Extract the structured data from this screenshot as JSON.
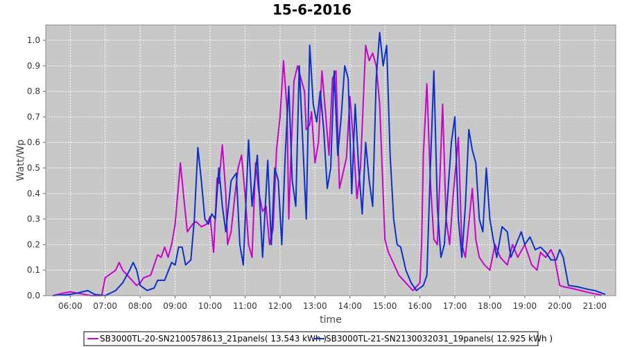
{
  "chart_data": {
    "type": "line",
    "title": "15-6-2016",
    "xlabel": "time",
    "ylabel": "Watt/Wp",
    "xlim": [
      5.3,
      21.6
    ],
    "ylim": [
      0,
      1.06
    ],
    "x_ticks": [
      {
        "value": 6,
        "label": "06:00"
      },
      {
        "value": 7,
        "label": "07:00"
      },
      {
        "value": 8,
        "label": "08:00"
      },
      {
        "value": 9,
        "label": "09:00"
      },
      {
        "value": 10,
        "label": "10:00"
      },
      {
        "value": 11,
        "label": "11:00"
      },
      {
        "value": 12,
        "label": "12:00"
      },
      {
        "value": 13,
        "label": "13:00"
      },
      {
        "value": 14,
        "label": "14:00"
      },
      {
        "value": 15,
        "label": "15:00"
      },
      {
        "value": 16,
        "label": "16:00"
      },
      {
        "value": 17,
        "label": "17:00"
      },
      {
        "value": 18,
        "label": "18:00"
      },
      {
        "value": 19,
        "label": "19:00"
      },
      {
        "value": 20,
        "label": "20:00"
      },
      {
        "value": 21,
        "label": "21:00"
      }
    ],
    "y_ticks": [
      {
        "value": 0.0,
        "label": "0.0"
      },
      {
        "value": 0.1,
        "label": "0.1"
      },
      {
        "value": 0.2,
        "label": "0.2"
      },
      {
        "value": 0.3,
        "label": "0.3"
      },
      {
        "value": 0.4,
        "label": "0.4"
      },
      {
        "value": 0.5,
        "label": "0.5"
      },
      {
        "value": 0.6,
        "label": "0.6"
      },
      {
        "value": 0.7,
        "label": "0.7"
      },
      {
        "value": 0.8,
        "label": "0.8"
      },
      {
        "value": 0.9,
        "label": "0.9"
      },
      {
        "value": 1.0,
        "label": "1.0"
      }
    ],
    "grid": true,
    "legend_position": "bottom",
    "colors": {
      "plot_background": "#c8c8c8",
      "grid": "#ffffff"
    },
    "series": [
      {
        "name": "SB3000TL-20-SN2100578613_21panels( 13.543 kWh )",
        "color": "#cc00cc",
        "points": [
          [
            5.5,
            0.0
          ],
          [
            5.8,
            0.01
          ],
          [
            6.0,
            0.015
          ],
          [
            6.2,
            0.01
          ],
          [
            6.4,
            0.005
          ],
          [
            6.6,
            0.0
          ],
          [
            6.9,
            0.0
          ],
          [
            7.0,
            0.07
          ],
          [
            7.2,
            0.09
          ],
          [
            7.3,
            0.1
          ],
          [
            7.4,
            0.13
          ],
          [
            7.5,
            0.1
          ],
          [
            7.7,
            0.07
          ],
          [
            7.9,
            0.04
          ],
          [
            8.0,
            0.05
          ],
          [
            8.1,
            0.07
          ],
          [
            8.3,
            0.08
          ],
          [
            8.5,
            0.16
          ],
          [
            8.6,
            0.15
          ],
          [
            8.7,
            0.19
          ],
          [
            8.8,
            0.15
          ],
          [
            8.9,
            0.2
          ],
          [
            9.0,
            0.28
          ],
          [
            9.15,
            0.52
          ],
          [
            9.25,
            0.38
          ],
          [
            9.35,
            0.25
          ],
          [
            9.5,
            0.28
          ],
          [
            9.6,
            0.29
          ],
          [
            9.75,
            0.27
          ],
          [
            9.9,
            0.28
          ],
          [
            10.0,
            0.31
          ],
          [
            10.1,
            0.17
          ],
          [
            10.2,
            0.46
          ],
          [
            10.25,
            0.44
          ],
          [
            10.35,
            0.59
          ],
          [
            10.45,
            0.4
          ],
          [
            10.5,
            0.2
          ],
          [
            10.6,
            0.25
          ],
          [
            10.7,
            0.38
          ],
          [
            10.8,
            0.5
          ],
          [
            10.9,
            0.55
          ],
          [
            11.0,
            0.4
          ],
          [
            11.1,
            0.2
          ],
          [
            11.2,
            0.15
          ],
          [
            11.3,
            0.52
          ],
          [
            11.4,
            0.4
          ],
          [
            11.5,
            0.33
          ],
          [
            11.6,
            0.35
          ],
          [
            11.7,
            0.2
          ],
          [
            11.8,
            0.26
          ],
          [
            11.9,
            0.57
          ],
          [
            12.0,
            0.7
          ],
          [
            12.1,
            0.92
          ],
          [
            12.2,
            0.73
          ],
          [
            12.25,
            0.3
          ],
          [
            12.3,
            0.5
          ],
          [
            12.4,
            0.84
          ],
          [
            12.5,
            0.9
          ],
          [
            12.6,
            0.85
          ],
          [
            12.7,
            0.8
          ],
          [
            12.75,
            0.65
          ],
          [
            12.85,
            0.67
          ],
          [
            12.9,
            0.72
          ],
          [
            13.0,
            0.52
          ],
          [
            13.1,
            0.6
          ],
          [
            13.2,
            0.88
          ],
          [
            13.3,
            0.72
          ],
          [
            13.4,
            0.55
          ],
          [
            13.5,
            0.85
          ],
          [
            13.6,
            0.88
          ],
          [
            13.7,
            0.42
          ],
          [
            13.8,
            0.48
          ],
          [
            13.9,
            0.54
          ],
          [
            14.0,
            0.78
          ],
          [
            14.1,
            0.6
          ],
          [
            14.2,
            0.38
          ],
          [
            14.3,
            0.5
          ],
          [
            14.45,
            0.98
          ],
          [
            14.55,
            0.92
          ],
          [
            14.65,
            0.95
          ],
          [
            14.75,
            0.9
          ],
          [
            14.85,
            0.75
          ],
          [
            14.95,
            0.4
          ],
          [
            15.0,
            0.22
          ],
          [
            15.1,
            0.17
          ],
          [
            15.2,
            0.14
          ],
          [
            15.4,
            0.08
          ],
          [
            15.6,
            0.05
          ],
          [
            15.8,
            0.02
          ],
          [
            16.0,
            0.05
          ],
          [
            16.05,
            0.2
          ],
          [
            16.1,
            0.55
          ],
          [
            16.2,
            0.83
          ],
          [
            16.3,
            0.45
          ],
          [
            16.4,
            0.22
          ],
          [
            16.5,
            0.2
          ],
          [
            16.65,
            0.75
          ],
          [
            16.75,
            0.3
          ],
          [
            16.85,
            0.2
          ],
          [
            16.95,
            0.39
          ],
          [
            17.1,
            0.62
          ],
          [
            17.2,
            0.2
          ],
          [
            17.3,
            0.15
          ],
          [
            17.5,
            0.42
          ],
          [
            17.6,
            0.22
          ],
          [
            17.7,
            0.15
          ],
          [
            17.85,
            0.12
          ],
          [
            18.0,
            0.1
          ],
          [
            18.15,
            0.2
          ],
          [
            18.3,
            0.15
          ],
          [
            18.5,
            0.12
          ],
          [
            18.65,
            0.2
          ],
          [
            18.8,
            0.15
          ],
          [
            19.0,
            0.2
          ],
          [
            19.2,
            0.12
          ],
          [
            19.35,
            0.1
          ],
          [
            19.45,
            0.17
          ],
          [
            19.6,
            0.15
          ],
          [
            19.75,
            0.18
          ],
          [
            19.85,
            0.15
          ],
          [
            20.0,
            0.04
          ],
          [
            20.1,
            0.035
          ],
          [
            20.3,
            0.03
          ],
          [
            20.6,
            0.02
          ],
          [
            20.9,
            0.01
          ],
          [
            21.2,
            0.002
          ]
        ]
      },
      {
        "name": "SB3000TL-21-SN2130032031_19panels( 12.925 kWh )",
        "color": "#0a2fcc",
        "points": [
          [
            5.5,
            0.0
          ],
          [
            6.0,
            0.005
          ],
          [
            6.2,
            0.01
          ],
          [
            6.5,
            0.02
          ],
          [
            6.7,
            0.005
          ],
          [
            7.0,
            0.0
          ],
          [
            7.3,
            0.02
          ],
          [
            7.5,
            0.05
          ],
          [
            7.7,
            0.1
          ],
          [
            7.8,
            0.13
          ],
          [
            7.9,
            0.1
          ],
          [
            8.0,
            0.04
          ],
          [
            8.2,
            0.02
          ],
          [
            8.4,
            0.03
          ],
          [
            8.5,
            0.06
          ],
          [
            8.7,
            0.06
          ],
          [
            8.9,
            0.13
          ],
          [
            9.0,
            0.12
          ],
          [
            9.1,
            0.19
          ],
          [
            9.2,
            0.19
          ],
          [
            9.3,
            0.12
          ],
          [
            9.45,
            0.14
          ],
          [
            9.55,
            0.3
          ],
          [
            9.65,
            0.58
          ],
          [
            9.75,
            0.45
          ],
          [
            9.85,
            0.3
          ],
          [
            9.95,
            0.28
          ],
          [
            10.05,
            0.32
          ],
          [
            10.15,
            0.3
          ],
          [
            10.25,
            0.5
          ],
          [
            10.35,
            0.35
          ],
          [
            10.45,
            0.25
          ],
          [
            10.6,
            0.45
          ],
          [
            10.75,
            0.48
          ],
          [
            10.85,
            0.2
          ],
          [
            10.95,
            0.12
          ],
          [
            11.1,
            0.61
          ],
          [
            11.2,
            0.35
          ],
          [
            11.35,
            0.55
          ],
          [
            11.5,
            0.15
          ],
          [
            11.65,
            0.53
          ],
          [
            11.75,
            0.2
          ],
          [
            11.85,
            0.5
          ],
          [
            11.95,
            0.45
          ],
          [
            12.05,
            0.2
          ],
          [
            12.15,
            0.55
          ],
          [
            12.25,
            0.82
          ],
          [
            12.35,
            0.45
          ],
          [
            12.45,
            0.35
          ],
          [
            12.55,
            0.9
          ],
          [
            12.65,
            0.6
          ],
          [
            12.75,
            0.3
          ],
          [
            12.85,
            0.98
          ],
          [
            12.95,
            0.75
          ],
          [
            13.05,
            0.68
          ],
          [
            13.15,
            0.8
          ],
          [
            13.25,
            0.65
          ],
          [
            13.35,
            0.42
          ],
          [
            13.45,
            0.5
          ],
          [
            13.55,
            0.88
          ],
          [
            13.65,
            0.55
          ],
          [
            13.75,
            0.7
          ],
          [
            13.85,
            0.9
          ],
          [
            13.95,
            0.85
          ],
          [
            14.05,
            0.4
          ],
          [
            14.15,
            0.75
          ],
          [
            14.25,
            0.5
          ],
          [
            14.35,
            0.32
          ],
          [
            14.45,
            0.6
          ],
          [
            14.55,
            0.45
          ],
          [
            14.65,
            0.35
          ],
          [
            14.75,
            0.85
          ],
          [
            14.85,
            1.03
          ],
          [
            14.95,
            0.9
          ],
          [
            15.05,
            0.98
          ],
          [
            15.15,
            0.55
          ],
          [
            15.25,
            0.3
          ],
          [
            15.35,
            0.2
          ],
          [
            15.45,
            0.19
          ],
          [
            15.6,
            0.1
          ],
          [
            15.75,
            0.05
          ],
          [
            15.9,
            0.02
          ],
          [
            16.1,
            0.04
          ],
          [
            16.2,
            0.08
          ],
          [
            16.3,
            0.5
          ],
          [
            16.4,
            0.88
          ],
          [
            16.5,
            0.35
          ],
          [
            16.6,
            0.15
          ],
          [
            16.7,
            0.2
          ],
          [
            16.8,
            0.4
          ],
          [
            16.9,
            0.6
          ],
          [
            17.0,
            0.7
          ],
          [
            17.1,
            0.3
          ],
          [
            17.2,
            0.15
          ],
          [
            17.3,
            0.35
          ],
          [
            17.4,
            0.65
          ],
          [
            17.5,
            0.57
          ],
          [
            17.6,
            0.52
          ],
          [
            17.7,
            0.3
          ],
          [
            17.8,
            0.25
          ],
          [
            17.9,
            0.5
          ],
          [
            18.0,
            0.3
          ],
          [
            18.1,
            0.22
          ],
          [
            18.2,
            0.15
          ],
          [
            18.35,
            0.27
          ],
          [
            18.5,
            0.25
          ],
          [
            18.6,
            0.15
          ],
          [
            18.75,
            0.2
          ],
          [
            18.9,
            0.25
          ],
          [
            19.0,
            0.2
          ],
          [
            19.15,
            0.23
          ],
          [
            19.3,
            0.18
          ],
          [
            19.45,
            0.19
          ],
          [
            19.6,
            0.17
          ],
          [
            19.75,
            0.14
          ],
          [
            19.9,
            0.14
          ],
          [
            20.0,
            0.18
          ],
          [
            20.1,
            0.15
          ],
          [
            20.25,
            0.04
          ],
          [
            20.5,
            0.035
          ],
          [
            20.8,
            0.025
          ],
          [
            21.0,
            0.02
          ],
          [
            21.2,
            0.01
          ],
          [
            21.3,
            0.005
          ]
        ]
      }
    ]
  }
}
